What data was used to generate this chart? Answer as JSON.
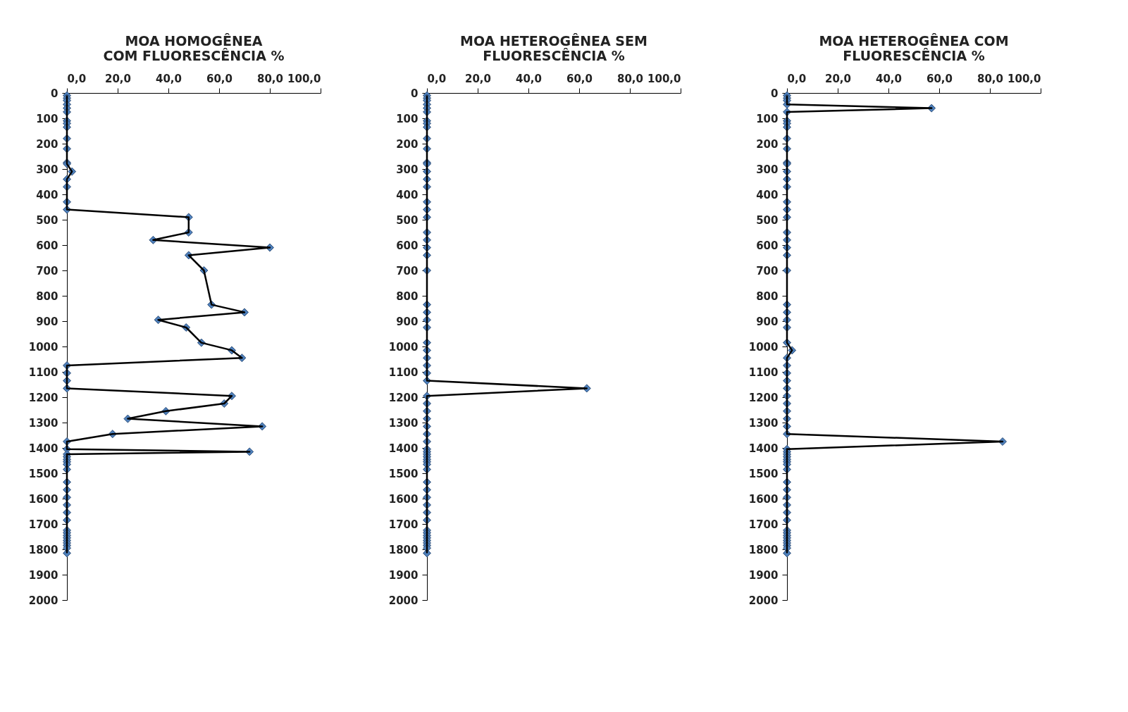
{
  "chart_data": [
    {
      "type": "line",
      "title": "MOA HOMOGÊNEA\nCOM FLUORESCÊNCIA %",
      "marker": "diamond",
      "grid": false,
      "xlim": [
        0,
        100
      ],
      "xticks": [
        {
          "value": 0,
          "label": "0,0"
        },
        {
          "value": 20,
          "label": "20,0"
        },
        {
          "value": 40,
          "label": "40,0"
        },
        {
          "value": 60,
          "label": "60,0"
        },
        {
          "value": 80,
          "label": "80,0"
        },
        {
          "value": 100,
          "label": "100,0"
        }
      ],
      "ylim": [
        2000,
        0
      ],
      "yticks": [
        0,
        100,
        200,
        300,
        400,
        500,
        600,
        700,
        800,
        900,
        1000,
        1100,
        1200,
        1300,
        1400,
        1500,
        1600,
        1700,
        1800,
        1900,
        2000
      ],
      "series": [
        {
          "color": "#4f81bd",
          "x": [
            0,
            0,
            0,
            0,
            0,
            0,
            0,
            0,
            0,
            0,
            0,
            0,
            0,
            2,
            0,
            0,
            0,
            0,
            48,
            48,
            34,
            80,
            48,
            54,
            57,
            70,
            36,
            47,
            53,
            65,
            69,
            0,
            0,
            0,
            0,
            65,
            62,
            39,
            24,
            77,
            18,
            0,
            0,
            72,
            0,
            0,
            0,
            0,
            0,
            0,
            0,
            0,
            0,
            0,
            0,
            0,
            0,
            0,
            0,
            0,
            0,
            0,
            0,
            0,
            0
          ],
          "values": [
            10,
            20,
            30,
            45,
            60,
            75,
            110,
            120,
            135,
            180,
            220,
            275,
            280,
            310,
            340,
            370,
            430,
            460,
            490,
            550,
            580,
            610,
            640,
            700,
            835,
            865,
            895,
            925,
            985,
            1015,
            1045,
            1075,
            1105,
            1135,
            1165,
            1195,
            1225,
            1255,
            1285,
            1315,
            1345,
            1375,
            1405,
            1415,
            1425,
            1435,
            1445,
            1455,
            1465,
            1485,
            1535,
            1565,
            1595,
            1625,
            1655,
            1685,
            1725,
            1735,
            1745,
            1755,
            1765,
            1775,
            1785,
            1795,
            1815
          ]
        }
      ]
    },
    {
      "type": "line",
      "title": "MOA HETEROGÊNEA SEM\nFLUORESCÊNCIA %",
      "marker": "diamond",
      "grid": false,
      "xlim": [
        0,
        100
      ],
      "xticks": [
        {
          "value": 0,
          "label": "0,0"
        },
        {
          "value": 20,
          "label": "20,0"
        },
        {
          "value": 40,
          "label": "40,0"
        },
        {
          "value": 60,
          "label": "60,0"
        },
        {
          "value": 80,
          "label": "80,0"
        },
        {
          "value": 100,
          "label": "100,0"
        }
      ],
      "ylim": [
        2000,
        0
      ],
      "yticks": [
        0,
        100,
        200,
        300,
        400,
        500,
        600,
        700,
        800,
        900,
        1000,
        1100,
        1200,
        1300,
        1400,
        1500,
        1600,
        1700,
        1800,
        1900,
        2000
      ],
      "series": [
        {
          "color": "#4f81bd",
          "x": [
            0,
            0,
            0,
            0,
            0,
            0,
            0,
            0,
            0,
            0,
            0,
            0,
            0,
            0,
            0,
            0,
            0,
            0,
            0,
            0,
            0,
            0,
            0,
            0,
            0,
            0,
            0,
            0,
            0,
            0,
            0,
            0,
            0,
            0,
            63,
            0,
            0,
            0,
            0,
            0,
            0,
            0,
            0,
            0,
            0,
            0,
            0,
            0,
            0,
            0,
            0,
            0,
            0,
            0,
            0,
            0,
            0,
            0,
            0,
            0,
            0,
            0,
            0,
            0,
            0
          ],
          "values": [
            10,
            20,
            30,
            45,
            60,
            75,
            110,
            120,
            135,
            180,
            220,
            275,
            280,
            310,
            340,
            370,
            430,
            460,
            490,
            550,
            580,
            610,
            640,
            700,
            835,
            865,
            895,
            925,
            985,
            1015,
            1045,
            1075,
            1105,
            1135,
            1165,
            1195,
            1225,
            1255,
            1285,
            1315,
            1345,
            1375,
            1405,
            1415,
            1425,
            1435,
            1445,
            1455,
            1465,
            1485,
            1535,
            1565,
            1595,
            1625,
            1655,
            1685,
            1725,
            1735,
            1745,
            1755,
            1765,
            1775,
            1785,
            1795,
            1815
          ]
        }
      ]
    },
    {
      "type": "line",
      "title": "MOA HETEROGÊNEA COM\nFLUORESCÊNCIA %",
      "marker": "diamond",
      "grid": false,
      "xlim": [
        0,
        100
      ],
      "xticks": [
        {
          "value": 0,
          "label": "0,0"
        },
        {
          "value": 20,
          "label": "20,0"
        },
        {
          "value": 40,
          "label": "40,0"
        },
        {
          "value": 60,
          "label": "60,0"
        },
        {
          "value": 80,
          "label": "80,0"
        },
        {
          "value": 100,
          "label": "100,0"
        }
      ],
      "ylim": [
        2000,
        0
      ],
      "yticks": [
        0,
        100,
        200,
        300,
        400,
        500,
        600,
        700,
        800,
        900,
        1000,
        1100,
        1200,
        1300,
        1400,
        1500,
        1600,
        1700,
        1800,
        1900,
        2000
      ],
      "series": [
        {
          "color": "#4f81bd",
          "x": [
            0,
            0,
            0,
            0,
            57,
            0,
            0,
            0,
            0,
            0,
            0,
            0,
            0,
            0,
            0,
            0,
            0,
            0,
            0,
            0,
            0,
            0,
            0,
            0,
            0,
            0,
            0,
            0,
            0,
            2,
            0,
            0,
            0,
            0,
            0,
            0,
            0,
            0,
            0,
            0,
            0,
            85,
            0,
            0,
            0,
            0,
            0,
            0,
            0,
            0,
            0,
            0,
            0,
            0,
            0,
            0,
            0,
            0,
            0,
            0,
            0,
            0,
            0,
            0,
            0
          ],
          "values": [
            10,
            20,
            30,
            45,
            60,
            75,
            110,
            120,
            135,
            180,
            220,
            275,
            280,
            310,
            340,
            370,
            430,
            460,
            490,
            550,
            580,
            610,
            640,
            700,
            835,
            865,
            895,
            925,
            985,
            1015,
            1045,
            1075,
            1105,
            1135,
            1165,
            1195,
            1225,
            1255,
            1285,
            1315,
            1345,
            1375,
            1405,
            1415,
            1425,
            1435,
            1445,
            1455,
            1465,
            1485,
            1535,
            1565,
            1595,
            1625,
            1655,
            1685,
            1725,
            1735,
            1745,
            1755,
            1765,
            1775,
            1785,
            1795,
            1815
          ]
        }
      ]
    }
  ]
}
